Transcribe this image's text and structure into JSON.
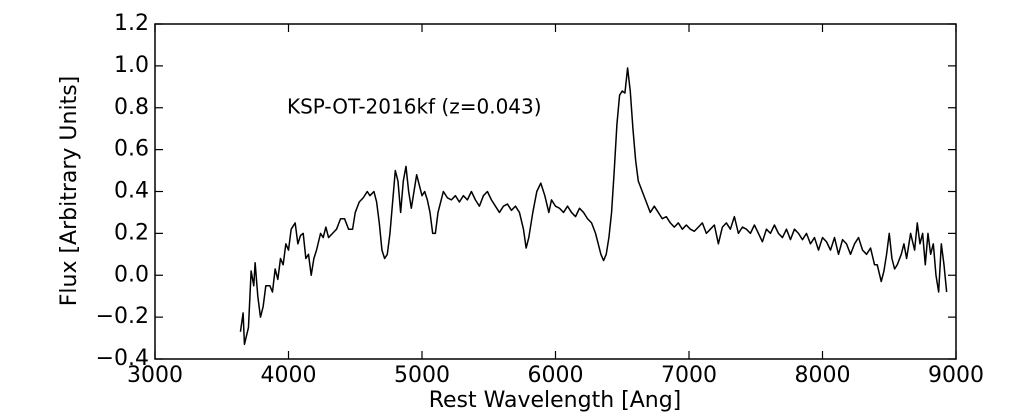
{
  "chart_data": {
    "type": "line",
    "annotation": "KSP-OT-2016kf (z=0.043)",
    "x_label": "Rest Wavelength [Ang]",
    "y_label": "Flux [Arbitrary Units]",
    "xlim": [
      3000,
      9000
    ],
    "ylim": [
      -0.4,
      1.2
    ],
    "xticks": [
      3000,
      4000,
      5000,
      6000,
      7000,
      8000,
      9000
    ],
    "yticks": [
      {
        "value": -0.4,
        "label": "−0.4"
      },
      {
        "value": -0.2,
        "label": "−0.2"
      },
      {
        "value": 0,
        "label": "0.0"
      },
      0.2,
      0.4,
      0.6,
      0.8,
      {
        "value": 1,
        "label": "1.0"
      },
      1.2
    ],
    "series": [
      {
        "color": "#000000",
        "x": [
          3640,
          3660,
          3670,
          3700,
          3720,
          3740,
          3750,
          3770,
          3790,
          3810,
          3830,
          3860,
          3880,
          3900,
          3920,
          3940,
          3960,
          3980,
          4000,
          4020,
          4050,
          4070,
          4090,
          4110,
          4130,
          4150,
          4170,
          4190,
          4210,
          4240,
          4260,
          4280,
          4300,
          4330,
          4360,
          4390,
          4420,
          4450,
          4480,
          4500,
          4530,
          4560,
          4590,
          4610,
          4640,
          4660,
          4680,
          4700,
          4720,
          4740,
          4760,
          4780,
          4800,
          4820,
          4840,
          4860,
          4880,
          4900,
          4920,
          4940,
          4960,
          4980,
          5000,
          5020,
          5040,
          5060,
          5080,
          5100,
          5120,
          5140,
          5160,
          5190,
          5220,
          5250,
          5280,
          5310,
          5340,
          5370,
          5400,
          5430,
          5460,
          5490,
          5520,
          5550,
          5580,
          5610,
          5640,
          5670,
          5700,
          5730,
          5760,
          5780,
          5800,
          5830,
          5860,
          5890,
          5920,
          5950,
          5970,
          6000,
          6030,
          6060,
          6090,
          6120,
          6150,
          6180,
          6210,
          6240,
          6270,
          6300,
          6320,
          6340,
          6360,
          6380,
          6400,
          6420,
          6440,
          6460,
          6480,
          6500,
          6520,
          6540,
          6560,
          6580,
          6600,
          6620,
          6650,
          6680,
          6710,
          6740,
          6770,
          6800,
          6830,
          6860,
          6890,
          6920,
          6950,
          6980,
          7010,
          7040,
          7070,
          7100,
          7130,
          7160,
          7190,
          7220,
          7250,
          7280,
          7310,
          7340,
          7370,
          7400,
          7430,
          7460,
          7490,
          7520,
          7550,
          7580,
          7610,
          7640,
          7670,
          7700,
          7730,
          7760,
          7790,
          7820,
          7850,
          7880,
          7910,
          7940,
          7970,
          8000,
          8030,
          8060,
          8090,
          8120,
          8150,
          8180,
          8210,
          8240,
          8270,
          8300,
          8330,
          8360,
          8390,
          8410,
          8440,
          8460,
          8480,
          8500,
          8520,
          8540,
          8560,
          8590,
          8610,
          8630,
          8660,
          8690,
          8710,
          8730,
          8750,
          8770,
          8790,
          8810,
          8830,
          8850,
          8870,
          8890,
          8910,
          8930
        ],
        "values": [
          -0.27,
          -0.18,
          -0.33,
          -0.25,
          0.02,
          -0.05,
          0.06,
          -0.1,
          -0.2,
          -0.15,
          -0.05,
          -0.05,
          -0.08,
          0.03,
          -0.02,
          0.08,
          0.05,
          0.15,
          0.12,
          0.22,
          0.25,
          0.15,
          0.19,
          0.2,
          0.08,
          0.1,
          0.0,
          0.08,
          0.12,
          0.2,
          0.18,
          0.23,
          0.18,
          0.2,
          0.22,
          0.27,
          0.27,
          0.22,
          0.22,
          0.3,
          0.35,
          0.37,
          0.4,
          0.38,
          0.4,
          0.35,
          0.25,
          0.12,
          0.08,
          0.1,
          0.2,
          0.35,
          0.5,
          0.45,
          0.3,
          0.45,
          0.52,
          0.4,
          0.32,
          0.4,
          0.48,
          0.43,
          0.38,
          0.4,
          0.36,
          0.3,
          0.2,
          0.2,
          0.3,
          0.35,
          0.4,
          0.37,
          0.36,
          0.38,
          0.35,
          0.38,
          0.36,
          0.4,
          0.36,
          0.33,
          0.38,
          0.4,
          0.36,
          0.33,
          0.3,
          0.33,
          0.34,
          0.31,
          0.33,
          0.3,
          0.22,
          0.13,
          0.18,
          0.3,
          0.4,
          0.44,
          0.38,
          0.3,
          0.36,
          0.33,
          0.32,
          0.3,
          0.33,
          0.3,
          0.28,
          0.32,
          0.3,
          0.27,
          0.25,
          0.2,
          0.15,
          0.1,
          0.07,
          0.1,
          0.18,
          0.3,
          0.5,
          0.72,
          0.86,
          0.88,
          0.87,
          0.99,
          0.88,
          0.7,
          0.55,
          0.45,
          0.4,
          0.35,
          0.3,
          0.33,
          0.3,
          0.27,
          0.28,
          0.25,
          0.23,
          0.25,
          0.22,
          0.24,
          0.22,
          0.21,
          0.23,
          0.25,
          0.2,
          0.22,
          0.24,
          0.15,
          0.23,
          0.25,
          0.22,
          0.28,
          0.2,
          0.23,
          0.22,
          0.2,
          0.24,
          0.2,
          0.16,
          0.22,
          0.2,
          0.24,
          0.2,
          0.18,
          0.22,
          0.17,
          0.22,
          0.2,
          0.17,
          0.2,
          0.15,
          0.18,
          0.12,
          0.18,
          0.16,
          0.12,
          0.18,
          0.1,
          0.17,
          0.15,
          0.1,
          0.15,
          0.18,
          0.12,
          0.1,
          0.13,
          0.05,
          0.05,
          -0.03,
          0.02,
          0.1,
          0.2,
          0.08,
          0.03,
          0.05,
          0.1,
          0.15,
          0.08,
          0.2,
          0.12,
          0.25,
          0.15,
          0.2,
          0.05,
          0.2,
          0.1,
          0.15,
          0.0,
          -0.08,
          0.15,
          0.05,
          -0.08
        ]
      }
    ]
  }
}
